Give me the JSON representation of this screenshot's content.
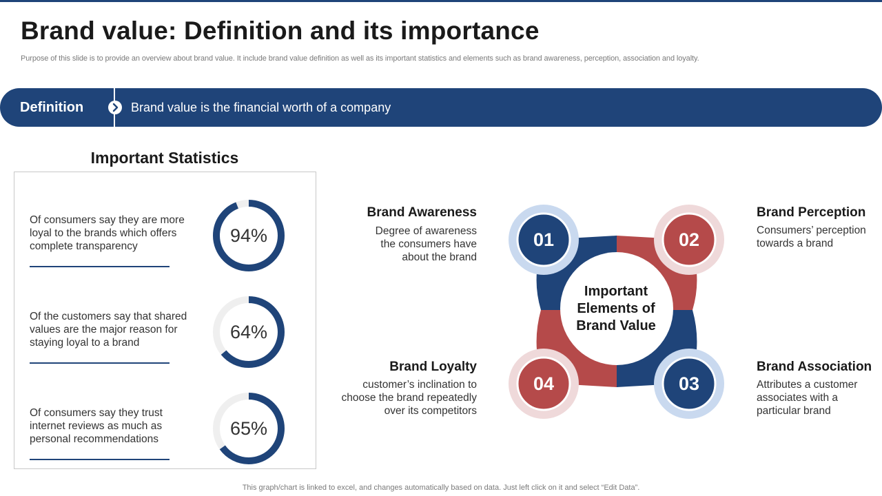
{
  "slide": {
    "title": "Brand value: Definition and its importance",
    "subtitle": "Purpose of this slide is to provide an overview about brand value. It include brand value definition as well as its important statistics and elements such as brand awareness, perception, association and loyalty."
  },
  "definition": {
    "label": "Definition",
    "text": "Brand value is the financial worth of a company"
  },
  "statistics": {
    "heading": "Important Statistics",
    "items": [
      {
        "text": "Of consumers say they are more loyal to the brands which offers complete transparency",
        "label": "94%",
        "value": 94
      },
      {
        "text": "Of the customers say that shared values are the major reason for staying loyal to a brand",
        "label": "64%",
        "value": 64
      },
      {
        "text": "Of consumers say they trust internet reviews as much as personal recommendations",
        "label": "65%",
        "value": 65
      }
    ]
  },
  "elements": {
    "center_label": "Important Elements of Brand Value",
    "items": [
      {
        "number": "01",
        "title": "Brand Awareness",
        "description": "Degree of awareness the consumers have about the brand"
      },
      {
        "number": "02",
        "title": "Brand Perception",
        "description": "Consumers’ perception towards a brand"
      },
      {
        "number": "03",
        "title": "Brand Association",
        "description": "Attributes a customer associates with a particular brand"
      },
      {
        "number": "04",
        "title": "Brand Loyalty",
        "description": "customer’s inclination to choose the brand repeatedly over its competitors"
      }
    ]
  },
  "footer": {
    "note": "This graph/chart is linked to excel, and changes automatically based on data. Just left click on it and select “Edit Data”."
  },
  "colors": {
    "navy": "#1f4479",
    "red": "#b54a4a",
    "light_blue": "#c9d9ef",
    "light_red": "#efd9da",
    "track_gray": "#efefef"
  }
}
